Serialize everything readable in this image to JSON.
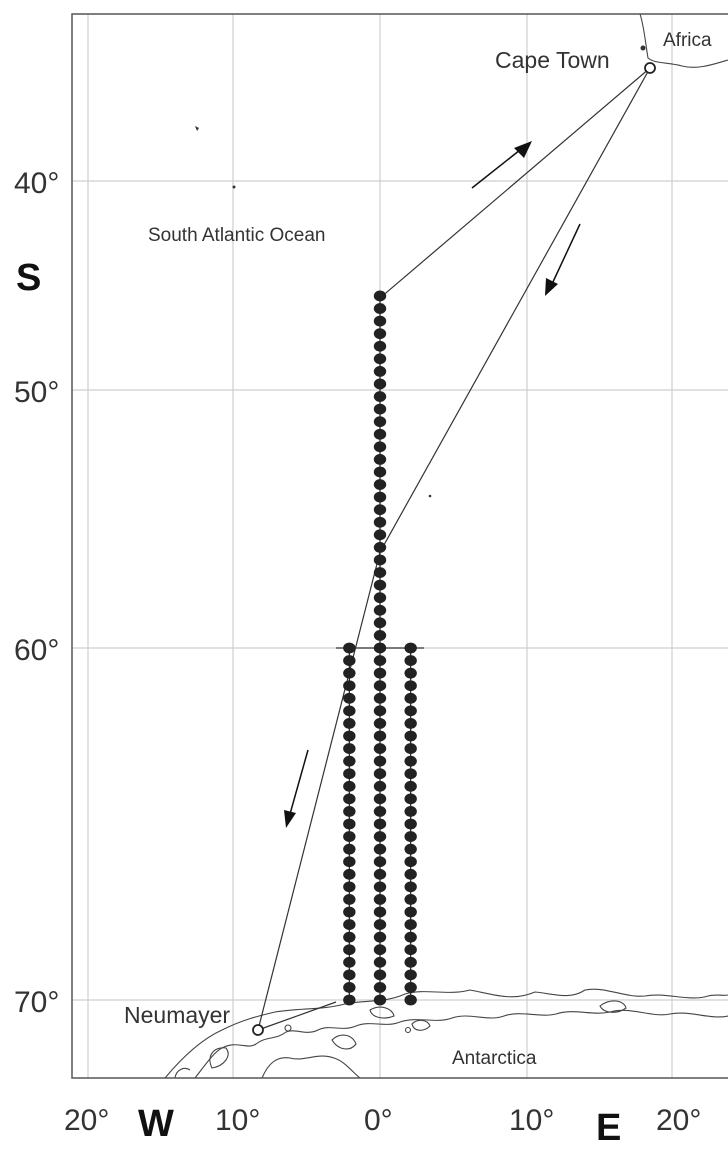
{
  "map": {
    "lat_labels": [
      "40°",
      "50°",
      "60°",
      "70°"
    ],
    "lat_values": [
      -40,
      -50,
      -60,
      -70
    ],
    "lon_labels": [
      "20°",
      "10°",
      "0°",
      "10°",
      "20°"
    ],
    "lon_values": [
      -20,
      -10,
      0,
      10,
      20
    ],
    "hemisphere_labels": {
      "south": "S",
      "west": "W",
      "east": "E"
    },
    "regions": {
      "africa": "Africa",
      "ocean": "South Atlantic Ocean",
      "antarctica": "Antarctica"
    },
    "places": [
      {
        "name": "Cape Town",
        "lon": 18.4,
        "lat": -33.9
      },
      {
        "name": "Neumayer",
        "lon": -8.3,
        "lat": -70.6
      }
    ],
    "transects": [
      {
        "lon": 0,
        "lat_start": -45.5,
        "lat_end": -70
      },
      {
        "lon": -2.1,
        "lat_start": -60,
        "lat_end": -70
      },
      {
        "lon": 2.1,
        "lat_start": -60,
        "lat_end": -70
      }
    ],
    "colors": {
      "station": "#222222",
      "grid": "#cfcfcf",
      "coast": "#444444",
      "track": "#333333"
    }
  }
}
